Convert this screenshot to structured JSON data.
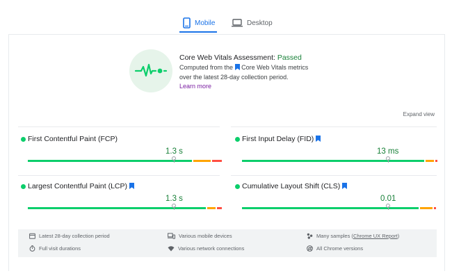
{
  "tabs": [
    {
      "label": "Mobile",
      "icon": "smartphone-icon",
      "active": true
    },
    {
      "label": "Desktop",
      "icon": "laptop-icon",
      "active": false
    }
  ],
  "assessment": {
    "icon": "heartbeat-icon",
    "title_prefix": "Core Web Vitals Assessment: ",
    "status": "Passed",
    "line1_before": "Computed from the",
    "line1_after": "Core Web Vitals metrics",
    "line2": "over the latest 28-day collection period.",
    "learn_more": "Learn more"
  },
  "expand_view": "Expand view",
  "metrics": [
    {
      "name": "First Contentful Paint (FCP)",
      "value": "1.3 s",
      "core": false
    },
    {
      "name": "First Input Delay (FID)",
      "value": "13 ms",
      "core": true
    },
    {
      "name": "Largest Contentful Paint (LCP)",
      "value": "1.3 s",
      "core": true
    },
    {
      "name": "Cumulative Layout Shift (CLS)",
      "value": "0.01",
      "core": true
    }
  ],
  "colors": {
    "good": "#0cce6b",
    "needs_improvement": "#ffa400",
    "poor": "#ff4e42",
    "accent": "#1a73e8",
    "passed": "#188038"
  },
  "footer": {
    "period": "Latest 28-day collection period",
    "devices": "Various mobile devices",
    "samples_prefix": "Many samples (",
    "samples_link": "Chrome UX Report",
    "samples_suffix": ")",
    "durations": "Full visit durations",
    "network": "Various network connections",
    "versions": "All Chrome versions"
  }
}
